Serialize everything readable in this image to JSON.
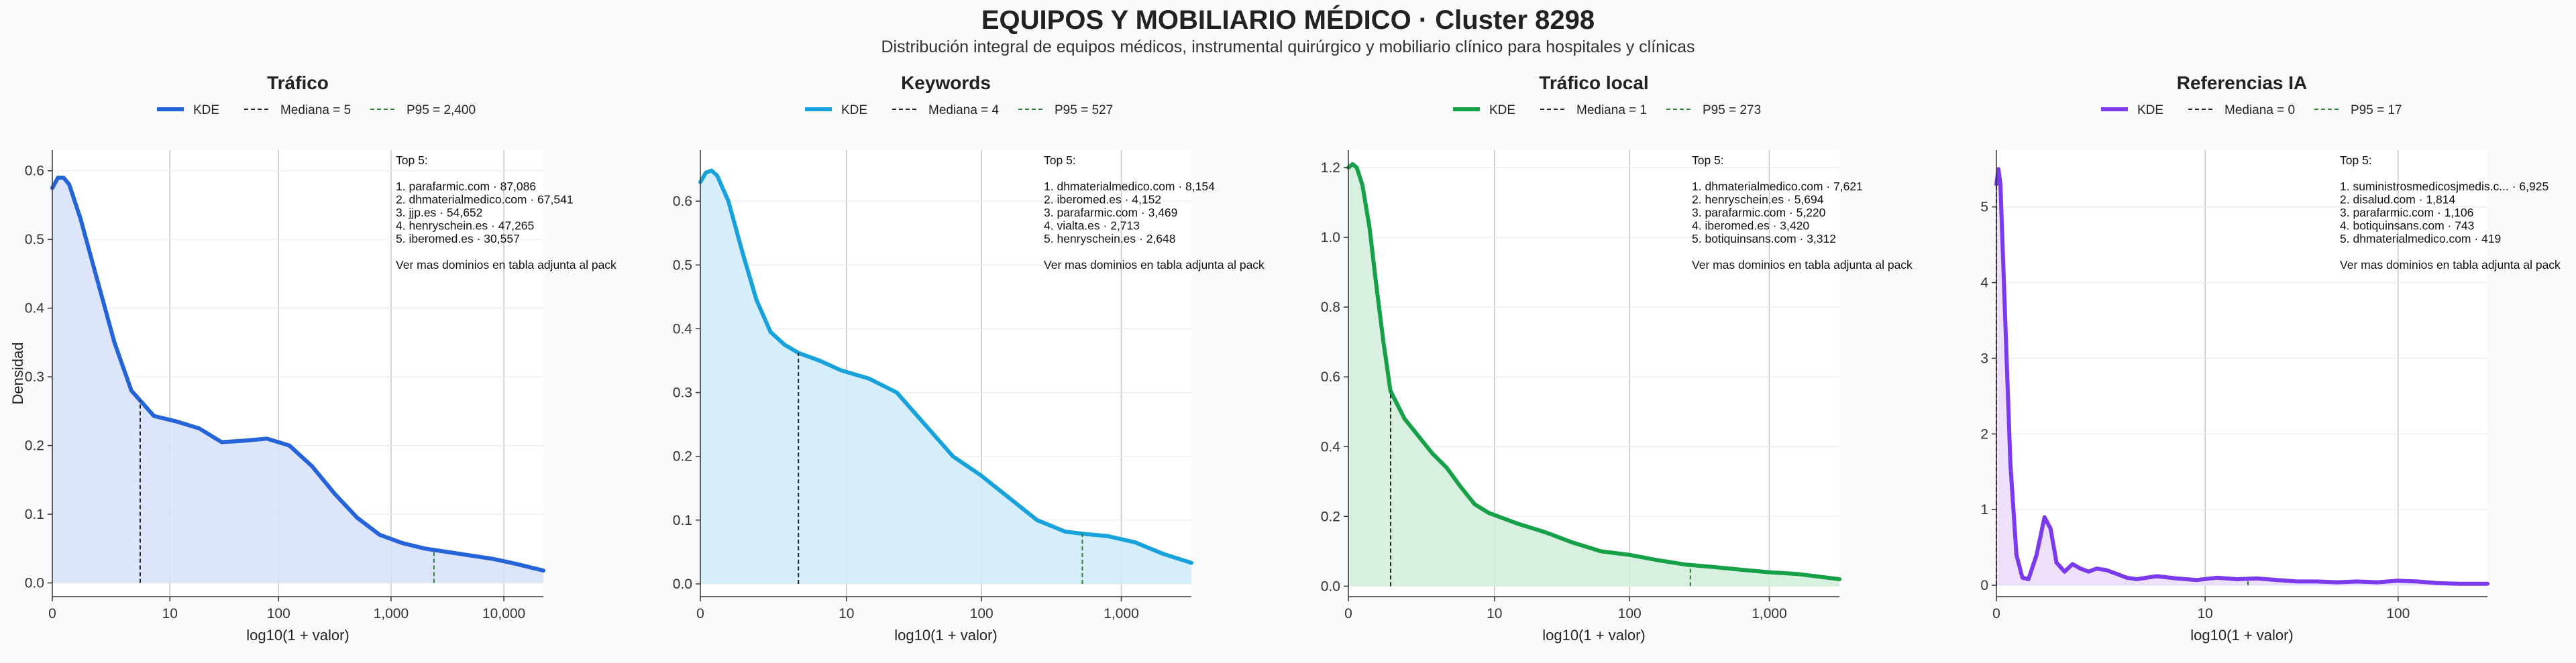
{
  "title": "EQUIPOS Y MOBILIARIO MÉDICO · Cluster 8298",
  "subtitle": "Distribución integral de equipos médicos, instrumental quirúrgico y mobiliario clínico para hospitales y clínicas",
  "colors": {
    "background": "#f8fafc",
    "median_line": "#222222",
    "p95_line": "#2e7d32",
    "grid": "#c8c8c8"
  },
  "chart_data": [
    {
      "type": "area",
      "title": "Tráfico",
      "color": "#2563d9",
      "fill": "#d8e2fa",
      "xlabel": "log10(1 + valor)",
      "ylabel": "Densidad",
      "xscale": "log10(1+x)",
      "xlim": [
        0,
        4.35
      ],
      "ylim": [
        -0.02,
        0.63
      ],
      "xticks": [
        0,
        10,
        100,
        1000,
        10000
      ],
      "xtick_labels": [
        "0",
        "10",
        "100",
        "1,000",
        "10,000"
      ],
      "yticks": [
        0.0,
        0.1,
        0.2,
        0.3,
        0.4,
        0.5,
        0.6
      ],
      "ytick_labels": [
        "0.0",
        "0.1",
        "0.2",
        "0.3",
        "0.4",
        "0.5",
        "0.6"
      ],
      "legend": {
        "kde": "KDE",
        "median": "Mediana = 5",
        "p95": "P95 = 2,400"
      },
      "median": 5,
      "p95": 2400,
      "x": [
        0.0,
        0.05,
        0.1,
        0.15,
        0.25,
        0.4,
        0.55,
        0.7,
        0.9,
        1.1,
        1.3,
        1.5,
        1.7,
        1.9,
        2.1,
        2.3,
        2.5,
        2.7,
        2.9,
        3.1,
        3.3,
        3.5,
        3.7,
        3.9,
        4.1,
        4.35
      ],
      "y": [
        0.575,
        0.59,
        0.59,
        0.58,
        0.53,
        0.44,
        0.35,
        0.28,
        0.243,
        0.235,
        0.225,
        0.205,
        0.207,
        0.21,
        0.2,
        0.17,
        0.13,
        0.095,
        0.07,
        0.058,
        0.05,
        0.045,
        0.04,
        0.035,
        0.028,
        0.018
      ],
      "annotation": [
        "Top 5:",
        "",
        "1. parafarmic.com · 87,086",
        "2. dhmaterialmedico.com · 67,541",
        "3. jjp.es · 54,652",
        "4. henryschein.es · 47,265",
        "5. iberomed.es · 30,557",
        "",
        "Ver mas dominios en tabla adjunta al pack"
      ]
    },
    {
      "type": "area",
      "title": "Keywords",
      "color": "#17a2dc",
      "fill": "#d2ecfa",
      "xlabel": "log10(1 + valor)",
      "ylabel": "",
      "xscale": "log10(1+x)",
      "xlim": [
        0,
        3.5
      ],
      "ylim": [
        -0.02,
        0.68
      ],
      "xticks": [
        0,
        10,
        100,
        1000
      ],
      "xtick_labels": [
        "0",
        "10",
        "100",
        "1,000"
      ],
      "yticks": [
        0.0,
        0.1,
        0.2,
        0.3,
        0.4,
        0.5,
        0.6
      ],
      "ytick_labels": [
        "0.0",
        "0.1",
        "0.2",
        "0.3",
        "0.4",
        "0.5",
        "0.6"
      ],
      "legend": {
        "kde": "KDE",
        "median": "Mediana = 4",
        "p95": "P95 = 527"
      },
      "median": 4,
      "p95": 527,
      "x": [
        0.0,
        0.04,
        0.08,
        0.12,
        0.2,
        0.3,
        0.4,
        0.5,
        0.6,
        0.7,
        0.85,
        1.0,
        1.2,
        1.4,
        1.6,
        1.8,
        2.0,
        2.2,
        2.4,
        2.6,
        2.75,
        2.9,
        3.1,
        3.3,
        3.5
      ],
      "y": [
        0.63,
        0.645,
        0.648,
        0.64,
        0.6,
        0.52,
        0.445,
        0.395,
        0.375,
        0.362,
        0.35,
        0.335,
        0.322,
        0.3,
        0.25,
        0.2,
        0.17,
        0.135,
        0.1,
        0.082,
        0.078,
        0.075,
        0.065,
        0.047,
        0.033
      ],
      "annotation": [
        "Top 5:",
        "",
        "1. dhmaterialmedico.com · 8,154",
        "2. iberomed.es · 4,152",
        "3. parafarmic.com · 3,469",
        "4. vialta.es · 2,713",
        "5. henryschein.es · 2,648",
        "",
        "Ver mas dominios en tabla adjunta al pack"
      ]
    },
    {
      "type": "area",
      "title": "Tráfico local",
      "color": "#16a047",
      "fill": "#d3eedc",
      "xlabel": "log10(1 + valor)",
      "ylabel": "",
      "xscale": "log10(1+x)",
      "xlim": [
        0,
        3.5
      ],
      "ylim": [
        -0.03,
        1.25
      ],
      "xticks": [
        0,
        10,
        100,
        1000
      ],
      "xtick_labels": [
        "0",
        "10",
        "100",
        "1,000"
      ],
      "yticks": [
        0.0,
        0.2,
        0.4,
        0.6,
        0.8,
        1.0,
        1.2
      ],
      "ytick_labels": [
        "0.0",
        "0.2",
        "0.4",
        "0.6",
        "0.8",
        "1.0",
        "1.2"
      ],
      "legend": {
        "kde": "KDE",
        "median": "Mediana = 1",
        "p95": "P95 = 273"
      },
      "median": 1,
      "p95": 273,
      "x": [
        0.0,
        0.03,
        0.06,
        0.1,
        0.15,
        0.2,
        0.25,
        0.3,
        0.4,
        0.5,
        0.6,
        0.7,
        0.8,
        0.9,
        1.0,
        1.2,
        1.4,
        1.6,
        1.8,
        2.0,
        2.2,
        2.4,
        2.6,
        2.8,
        3.0,
        3.2,
        3.5
      ],
      "y": [
        1.2,
        1.21,
        1.2,
        1.15,
        1.03,
        0.86,
        0.7,
        0.56,
        0.48,
        0.43,
        0.38,
        0.34,
        0.285,
        0.235,
        0.21,
        0.18,
        0.155,
        0.125,
        0.1,
        0.09,
        0.075,
        0.062,
        0.055,
        0.047,
        0.04,
        0.035,
        0.02
      ],
      "annotation": [
        "Top 5:",
        "",
        "1. dhmaterialmedico.com · 7,621",
        "2. henryschein.es · 5,694",
        "3. parafarmic.com · 5,220",
        "4. iberomed.es · 3,420",
        "5. botiquinsans.com · 3,312",
        "",
        "Ver mas dominios en tabla adjunta al pack"
      ]
    },
    {
      "type": "area",
      "title": "Referencias IA",
      "color": "#7c3aed",
      "fill": "#ecdcf9",
      "xlabel": "log10(1 + valor)",
      "ylabel": "",
      "xscale": "log10(1+x)",
      "xlim": [
        0,
        2.45
      ],
      "ylim": [
        -0.15,
        5.75
      ],
      "xticks": [
        0,
        10,
        100
      ],
      "xtick_labels": [
        "0",
        "10",
        "100"
      ],
      "yticks": [
        0,
        1,
        2,
        3,
        4,
        5
      ],
      "ytick_labels": [
        "0",
        "1",
        "2",
        "3",
        "4",
        "5"
      ],
      "legend": {
        "kde": "KDE",
        "median": "Mediana = 0",
        "p95": "P95 = 17"
      },
      "median": 0,
      "p95": 17,
      "x": [
        0.0,
        0.01,
        0.02,
        0.04,
        0.07,
        0.1,
        0.13,
        0.16,
        0.2,
        0.24,
        0.27,
        0.3,
        0.34,
        0.38,
        0.42,
        0.46,
        0.5,
        0.55,
        0.6,
        0.65,
        0.7,
        0.8,
        0.9,
        1.0,
        1.1,
        1.2,
        1.3,
        1.4,
        1.5,
        1.6,
        1.7,
        1.8,
        1.9,
        2.0,
        2.1,
        2.2,
        2.3,
        2.45
      ],
      "y": [
        5.3,
        5.5,
        5.3,
        3.8,
        1.6,
        0.4,
        0.1,
        0.08,
        0.4,
        0.9,
        0.75,
        0.3,
        0.18,
        0.28,
        0.22,
        0.18,
        0.22,
        0.2,
        0.15,
        0.1,
        0.08,
        0.12,
        0.09,
        0.07,
        0.1,
        0.08,
        0.09,
        0.07,
        0.05,
        0.05,
        0.04,
        0.05,
        0.04,
        0.06,
        0.05,
        0.03,
        0.02,
        0.02
      ],
      "annotation": [
        "Top 5:",
        "",
        "1. suministrosmedicosjmedis.c... · 6,925",
        "2. disalud.com · 1,814",
        "3. parafarmic.com · 1,106",
        "4. botiquinsans.com · 743",
        "5. dhmaterialmedico.com · 419",
        "",
        "Ver mas dominios en tabla adjunta al pack"
      ]
    }
  ]
}
